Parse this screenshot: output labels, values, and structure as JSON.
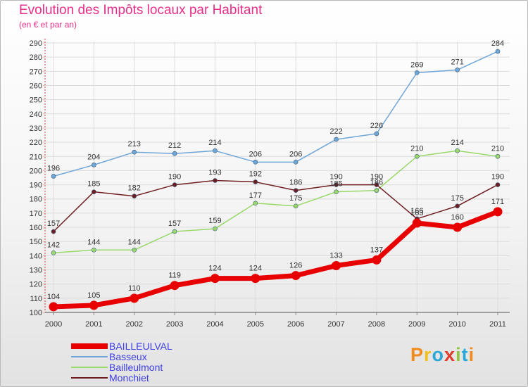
{
  "header": {
    "title": "Evolution des Impôts locaux par Habitant",
    "subtitle": "(en € et par an)"
  },
  "brand": {
    "letters": [
      "P",
      "r",
      "o",
      "x",
      "i",
      "t",
      "i"
    ],
    "colors": [
      "#f08a1c",
      "#f0c020",
      "#2aa8d8",
      "#e23a2a",
      "#8dc63f",
      "#2aa8d8",
      "#f08a1c"
    ]
  },
  "chart_data": {
    "type": "line",
    "title": "Evolution des Impôts locaux par Habitant",
    "subtitle": "(en € et par an)",
    "xlabel": "",
    "ylabel": "",
    "ylim": [
      100,
      290
    ],
    "ytick_step": 10,
    "grid": true,
    "legend_position": "bottom-left",
    "x": [
      "2000",
      "2001",
      "2002",
      "2003",
      "2004",
      "2005",
      "2006",
      "2007",
      "2008",
      "2009",
      "2010",
      "2011"
    ],
    "series": [
      {
        "name": "BAILLEULVAL",
        "color": "#e80000",
        "emphasis": true,
        "values": [
          104,
          105,
          110,
          119,
          124,
          124,
          126,
          133,
          137,
          163,
          160,
          171
        ],
        "labels": [
          "104",
          "105",
          "110",
          "119",
          "124",
          "124",
          "126",
          "133",
          "137",
          "163",
          "160",
          "171"
        ]
      },
      {
        "name": "Basseux",
        "color": "#6fa6d8",
        "emphasis": false,
        "values": [
          196,
          204,
          213,
          212,
          214,
          206,
          206,
          222,
          226,
          269,
          271,
          284
        ],
        "labels": [
          "196",
          "204",
          "213",
          "212",
          "214",
          "206",
          "206",
          "222",
          "226",
          "269",
          "271",
          "284"
        ]
      },
      {
        "name": "Bailleulmont",
        "color": "#9ad86a",
        "emphasis": false,
        "values": [
          142,
          144,
          144,
          157,
          159,
          177,
          175,
          185,
          186,
          210,
          214,
          210
        ],
        "labels": [
          "142",
          "144",
          "144",
          "157",
          "159",
          "177",
          "175",
          "185",
          "186",
          "210",
          "214",
          "210"
        ]
      },
      {
        "name": "Monchiet",
        "color": "#6e1e22",
        "emphasis": false,
        "values": [
          157,
          185,
          182,
          190,
          193,
          192,
          186,
          190,
          190,
          166,
          175,
          190
        ],
        "labels": [
          "157",
          "185",
          "182",
          "190",
          "193",
          "192",
          "186",
          "190",
          "190",
          "166",
          "175",
          "190"
        ]
      }
    ]
  }
}
